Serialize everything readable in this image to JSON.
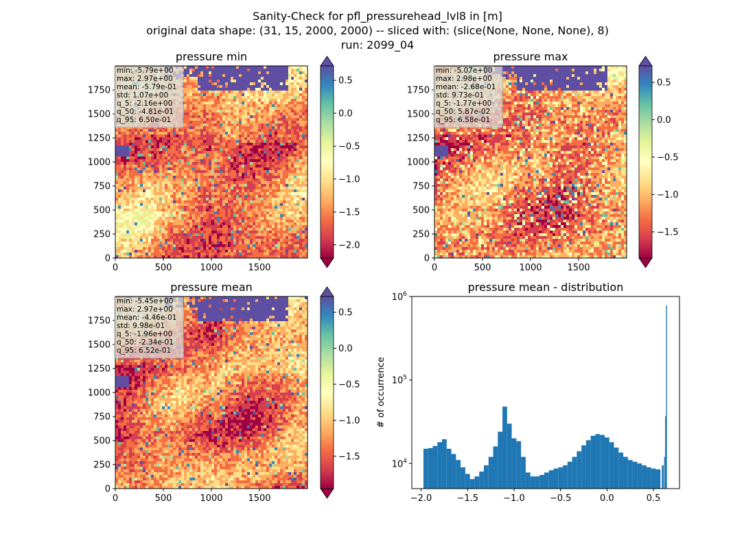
{
  "figure": {
    "title_line1": "Sanity-Check for pfl_pressurehead_lvl8 in [m]",
    "title_line2": "original data shape: (31, 15, 2000, 2000) -- sliced with: (slice(None, None, None), 8)",
    "title_line3": "run: 2099_04"
  },
  "colors": {
    "spectral": [
      "#9e0142",
      "#d53e4f",
      "#f46d43",
      "#fdae61",
      "#fee08b",
      "#ffffbf",
      "#e6f598",
      "#abdda4",
      "#66c2a5",
      "#3288bd",
      "#5e4fa2"
    ],
    "hist_bar": "#1f77b4",
    "water": "#5e4fa2"
  },
  "chart_data": [
    {
      "type": "heatmap",
      "title": "pressure min",
      "xlim": [
        0,
        2000
      ],
      "ylim": [
        0,
        2000
      ],
      "xticks": [
        0,
        500,
        1000,
        1500
      ],
      "yticks": [
        0,
        250,
        500,
        750,
        1000,
        1250,
        1500,
        1750
      ],
      "colorbar": {
        "range": [
          -2.2,
          0.72
        ],
        "ticks": [
          0.5,
          0.0,
          -0.5,
          -1.0,
          -1.5,
          -2.0
        ],
        "tick_labels": [
          "0.5",
          "0.0",
          "−0.5",
          "−1.0",
          "−1.5",
          "−2.0"
        ],
        "extend": "both"
      },
      "stats": [
        "min: -5.79e+00",
        "max: 2.97e+00",
        "mean: -5.79e-01",
        "std: 1.07e+00",
        "q_5: -2.16e+00",
        "q_50: -4.81e-01",
        "q_95: 6.50e-01"
      ]
    },
    {
      "type": "heatmap",
      "title": "pressure max",
      "xlim": [
        0,
        2000
      ],
      "ylim": [
        0,
        2000
      ],
      "xticks": [
        0,
        500,
        1000,
        1500
      ],
      "yticks": [
        0,
        250,
        500,
        750,
        1000,
        1250,
        1500,
        1750
      ],
      "colorbar": {
        "range": [
          -1.85,
          0.72
        ],
        "ticks": [
          0.5,
          0.0,
          -0.5,
          -1.0,
          -1.5
        ],
        "tick_labels": [
          "0.5",
          "0.0",
          "−0.5",
          "−1.0",
          "−1.5"
        ],
        "extend": "both"
      },
      "stats": [
        "min: -5.07e+00",
        "max: 2.98e+00",
        "mean: -2.68e-01",
        "std: 9.73e-01",
        "q_5: -1.77e+00",
        "q_50: 5.87e-02",
        "q_95: 6.58e-01"
      ]
    },
    {
      "type": "heatmap",
      "title": "pressure mean",
      "xlim": [
        0,
        2000
      ],
      "ylim": [
        0,
        2000
      ],
      "xticks": [
        0,
        500,
        1000,
        1500
      ],
      "yticks": [
        0,
        250,
        500,
        750,
        1000,
        1250,
        1500,
        1750
      ],
      "colorbar": {
        "range": [
          -1.95,
          0.72
        ],
        "ticks": [
          0.5,
          0.0,
          -0.5,
          -1.0,
          -1.5
        ],
        "tick_labels": [
          "0.5",
          "0.0",
          "−0.5",
          "−1.0",
          "−1.5"
        ],
        "extend": "both"
      },
      "stats": [
        "min: -5.45e+00",
        "max: 2.97e+00",
        "mean: -4.46e-01",
        "std: 9.98e-01",
        "q_5: -1.96e+00",
        "q_50: -2.34e-01",
        "q_95: 6.52e-01"
      ]
    },
    {
      "type": "bar",
      "title": "pressure mean - distribution",
      "ylabel": "# of occurrence",
      "xlabel": "",
      "xlim": [
        -2.1,
        0.78
      ],
      "ylim": [
        5000,
        1000000
      ],
      "yscale": "log",
      "xticks": [
        -2.0,
        -1.5,
        -1.0,
        -0.5,
        0.0,
        0.5
      ],
      "xtick_labels": [
        "−2.0",
        "−1.5",
        "−1.0",
        "−0.5",
        "0.0",
        "0.5"
      ],
      "ytick_labels": [
        "10^4",
        "10^5",
        "10^6"
      ],
      "ytick_values": [
        10000,
        100000,
        1000000
      ],
      "bins": [
        {
          "x": -1.95,
          "count": 15000
        },
        {
          "x": -1.9,
          "count": 15300
        },
        {
          "x": -1.85,
          "count": 16200
        },
        {
          "x": -1.8,
          "count": 18000
        },
        {
          "x": -1.75,
          "count": 19500
        },
        {
          "x": -1.7,
          "count": 15000
        },
        {
          "x": -1.65,
          "count": 13000
        },
        {
          "x": -1.6,
          "count": 11000
        },
        {
          "x": -1.55,
          "count": 9000
        },
        {
          "x": -1.5,
          "count": 7500
        },
        {
          "x": -1.45,
          "count": 6500
        },
        {
          "x": -1.4,
          "count": 7000
        },
        {
          "x": -1.35,
          "count": 8000
        },
        {
          "x": -1.3,
          "count": 9500
        },
        {
          "x": -1.25,
          "count": 12000
        },
        {
          "x": -1.2,
          "count": 16000
        },
        {
          "x": -1.15,
          "count": 24000
        },
        {
          "x": -1.1,
          "count": 48000
        },
        {
          "x": -1.05,
          "count": 30000
        },
        {
          "x": -1.0,
          "count": 20000
        },
        {
          "x": -0.95,
          "count": 18500
        },
        {
          "x": -0.9,
          "count": 12000
        },
        {
          "x": -0.85,
          "count": 7800
        },
        {
          "x": -0.8,
          "count": 7000
        },
        {
          "x": -0.75,
          "count": 7000
        },
        {
          "x": -0.7,
          "count": 7300
        },
        {
          "x": -0.65,
          "count": 7800
        },
        {
          "x": -0.6,
          "count": 8300
        },
        {
          "x": -0.55,
          "count": 8700
        },
        {
          "x": -0.5,
          "count": 9000
        },
        {
          "x": -0.45,
          "count": 9500
        },
        {
          "x": -0.4,
          "count": 10500
        },
        {
          "x": -0.35,
          "count": 12000
        },
        {
          "x": -0.3,
          "count": 14000
        },
        {
          "x": -0.25,
          "count": 16500
        },
        {
          "x": -0.2,
          "count": 19000
        },
        {
          "x": -0.15,
          "count": 21500
        },
        {
          "x": -0.1,
          "count": 22500
        },
        {
          "x": -0.05,
          "count": 22000
        },
        {
          "x": 0.0,
          "count": 20500
        },
        {
          "x": 0.05,
          "count": 18000
        },
        {
          "x": 0.1,
          "count": 15500
        },
        {
          "x": 0.15,
          "count": 13500
        },
        {
          "x": 0.2,
          "count": 12000
        },
        {
          "x": 0.25,
          "count": 11000
        },
        {
          "x": 0.3,
          "count": 10500
        },
        {
          "x": 0.35,
          "count": 10000
        },
        {
          "x": 0.4,
          "count": 9500
        },
        {
          "x": 0.45,
          "count": 9000
        },
        {
          "x": 0.5,
          "count": 8700
        },
        {
          "x": 0.55,
          "count": 8500
        },
        {
          "x": 0.6,
          "count": 9500
        },
        {
          "x": 0.62,
          "count": 12000
        },
        {
          "x": 0.63,
          "count": 37000
        },
        {
          "x": 0.64,
          "count": 780000
        }
      ]
    }
  ]
}
